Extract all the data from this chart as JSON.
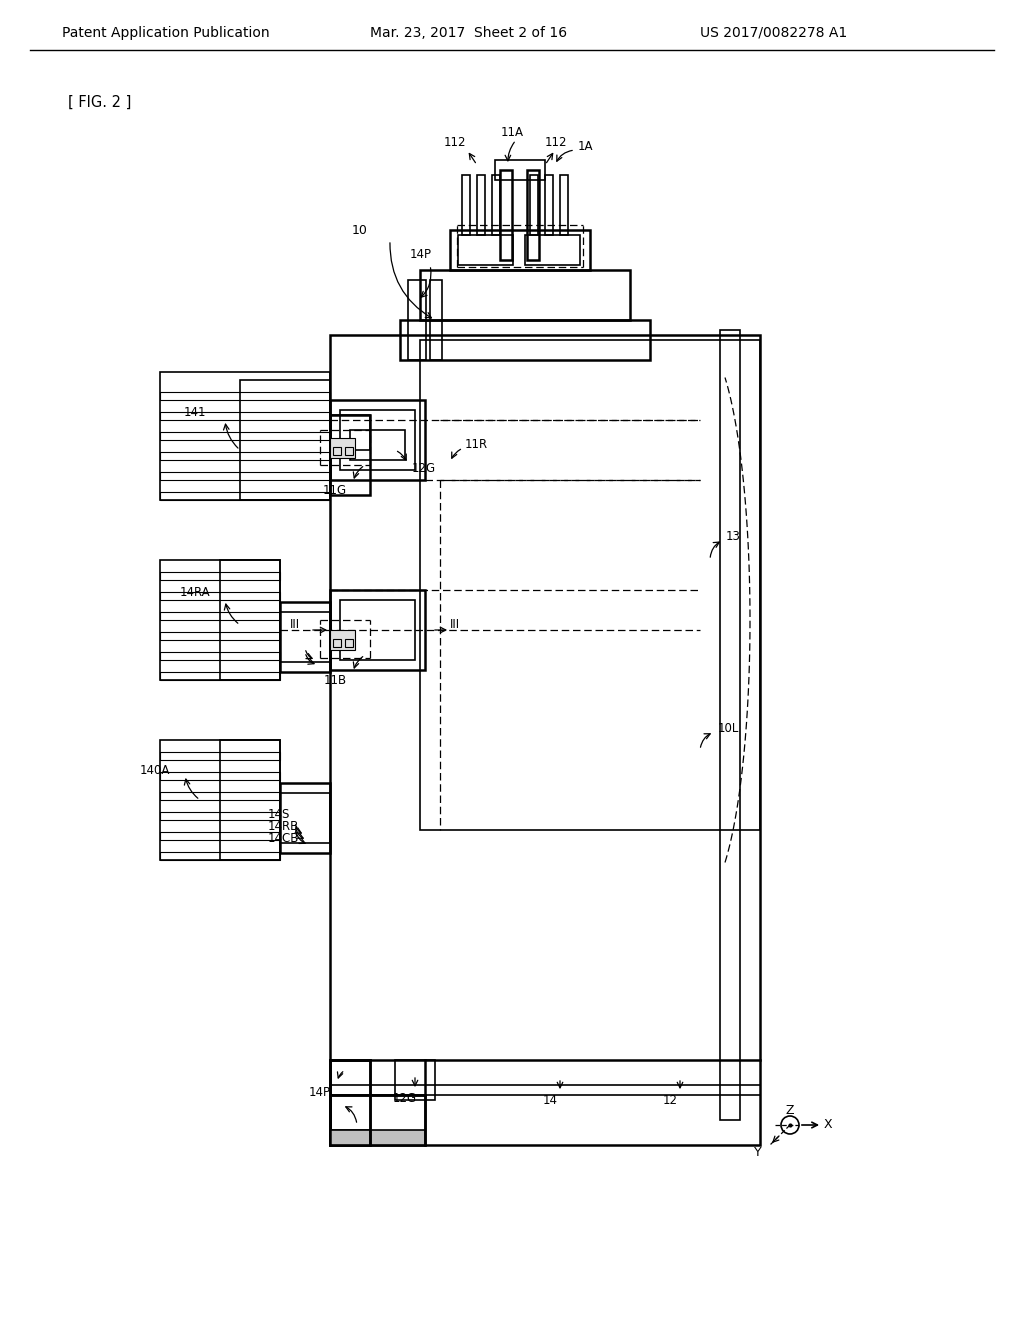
{
  "header_left": "Patent Application Publication",
  "header_mid": "Mar. 23, 2017  Sheet 2 of 16",
  "header_right": "US 2017/0082278 A1",
  "fig_label": "[ FIG. 2 ]",
  "background": "#ffffff",
  "label_10": "10",
  "label_10L": "10L",
  "label_11G": "11G",
  "label_11R": "11R",
  "label_11B": "11B",
  "label_12": "12",
  "label_12G": "12G",
  "label_13": "13",
  "label_14": "14",
  "label_14P_top": "14P",
  "label_14P_bot": "14P",
  "label_141": "141",
  "label_14RA": "14RA",
  "label_14RB": "14RB",
  "label_14CA": "140A",
  "label_14CB": "14CB",
  "label_14S": "14S",
  "label_112a": "112",
  "label_112b": "112",
  "label_1A": "1A",
  "label_11A": "11A",
  "label_III": "III"
}
